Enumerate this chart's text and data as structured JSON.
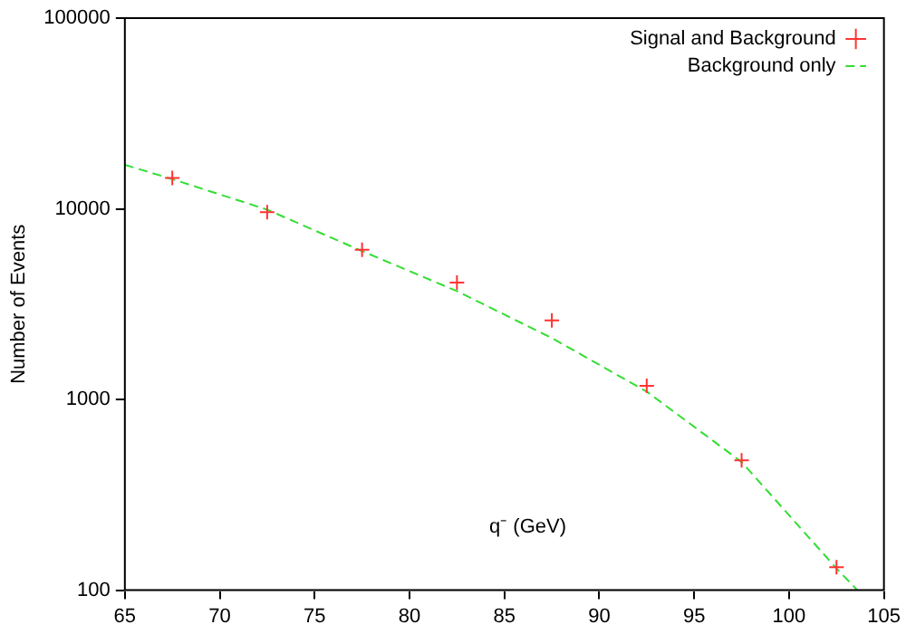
{
  "chart_data": {
    "type": "line",
    "xlabel": "q⁻ (GeV)",
    "ylabel": "Number of Events",
    "xlim": [
      65,
      105
    ],
    "xticks": [
      65,
      70,
      75,
      80,
      85,
      90,
      95,
      100,
      105
    ],
    "ylim": [
      100,
      100000
    ],
    "yticks": [
      100,
      1000,
      10000,
      100000
    ],
    "log": "y",
    "grid": false,
    "legend": "top right",
    "series": [
      {
        "name": "Signal and Background",
        "type": "scatter",
        "color": "#ff3333",
        "marker": "cross",
        "x": [
          67.5,
          72.5,
          77.5,
          82.5,
          87.5,
          92.5,
          97.5,
          102.5
        ],
        "values": [
          14500,
          9600,
          6100,
          4100,
          2600,
          1180,
          480,
          132
        ]
      },
      {
        "name": "Background only",
        "color": "#33dd33",
        "marker": "none",
        "line_style": "dashed",
        "x": [
          65,
          67.5,
          72.5,
          77.5,
          82.5,
          87.5,
          92.5,
          97.5,
          102.5,
          103.6
        ],
        "values": [
          17000,
          14300,
          9900,
          6000,
          3700,
          2100,
          1100,
          470,
          130,
          100
        ]
      }
    ]
  }
}
